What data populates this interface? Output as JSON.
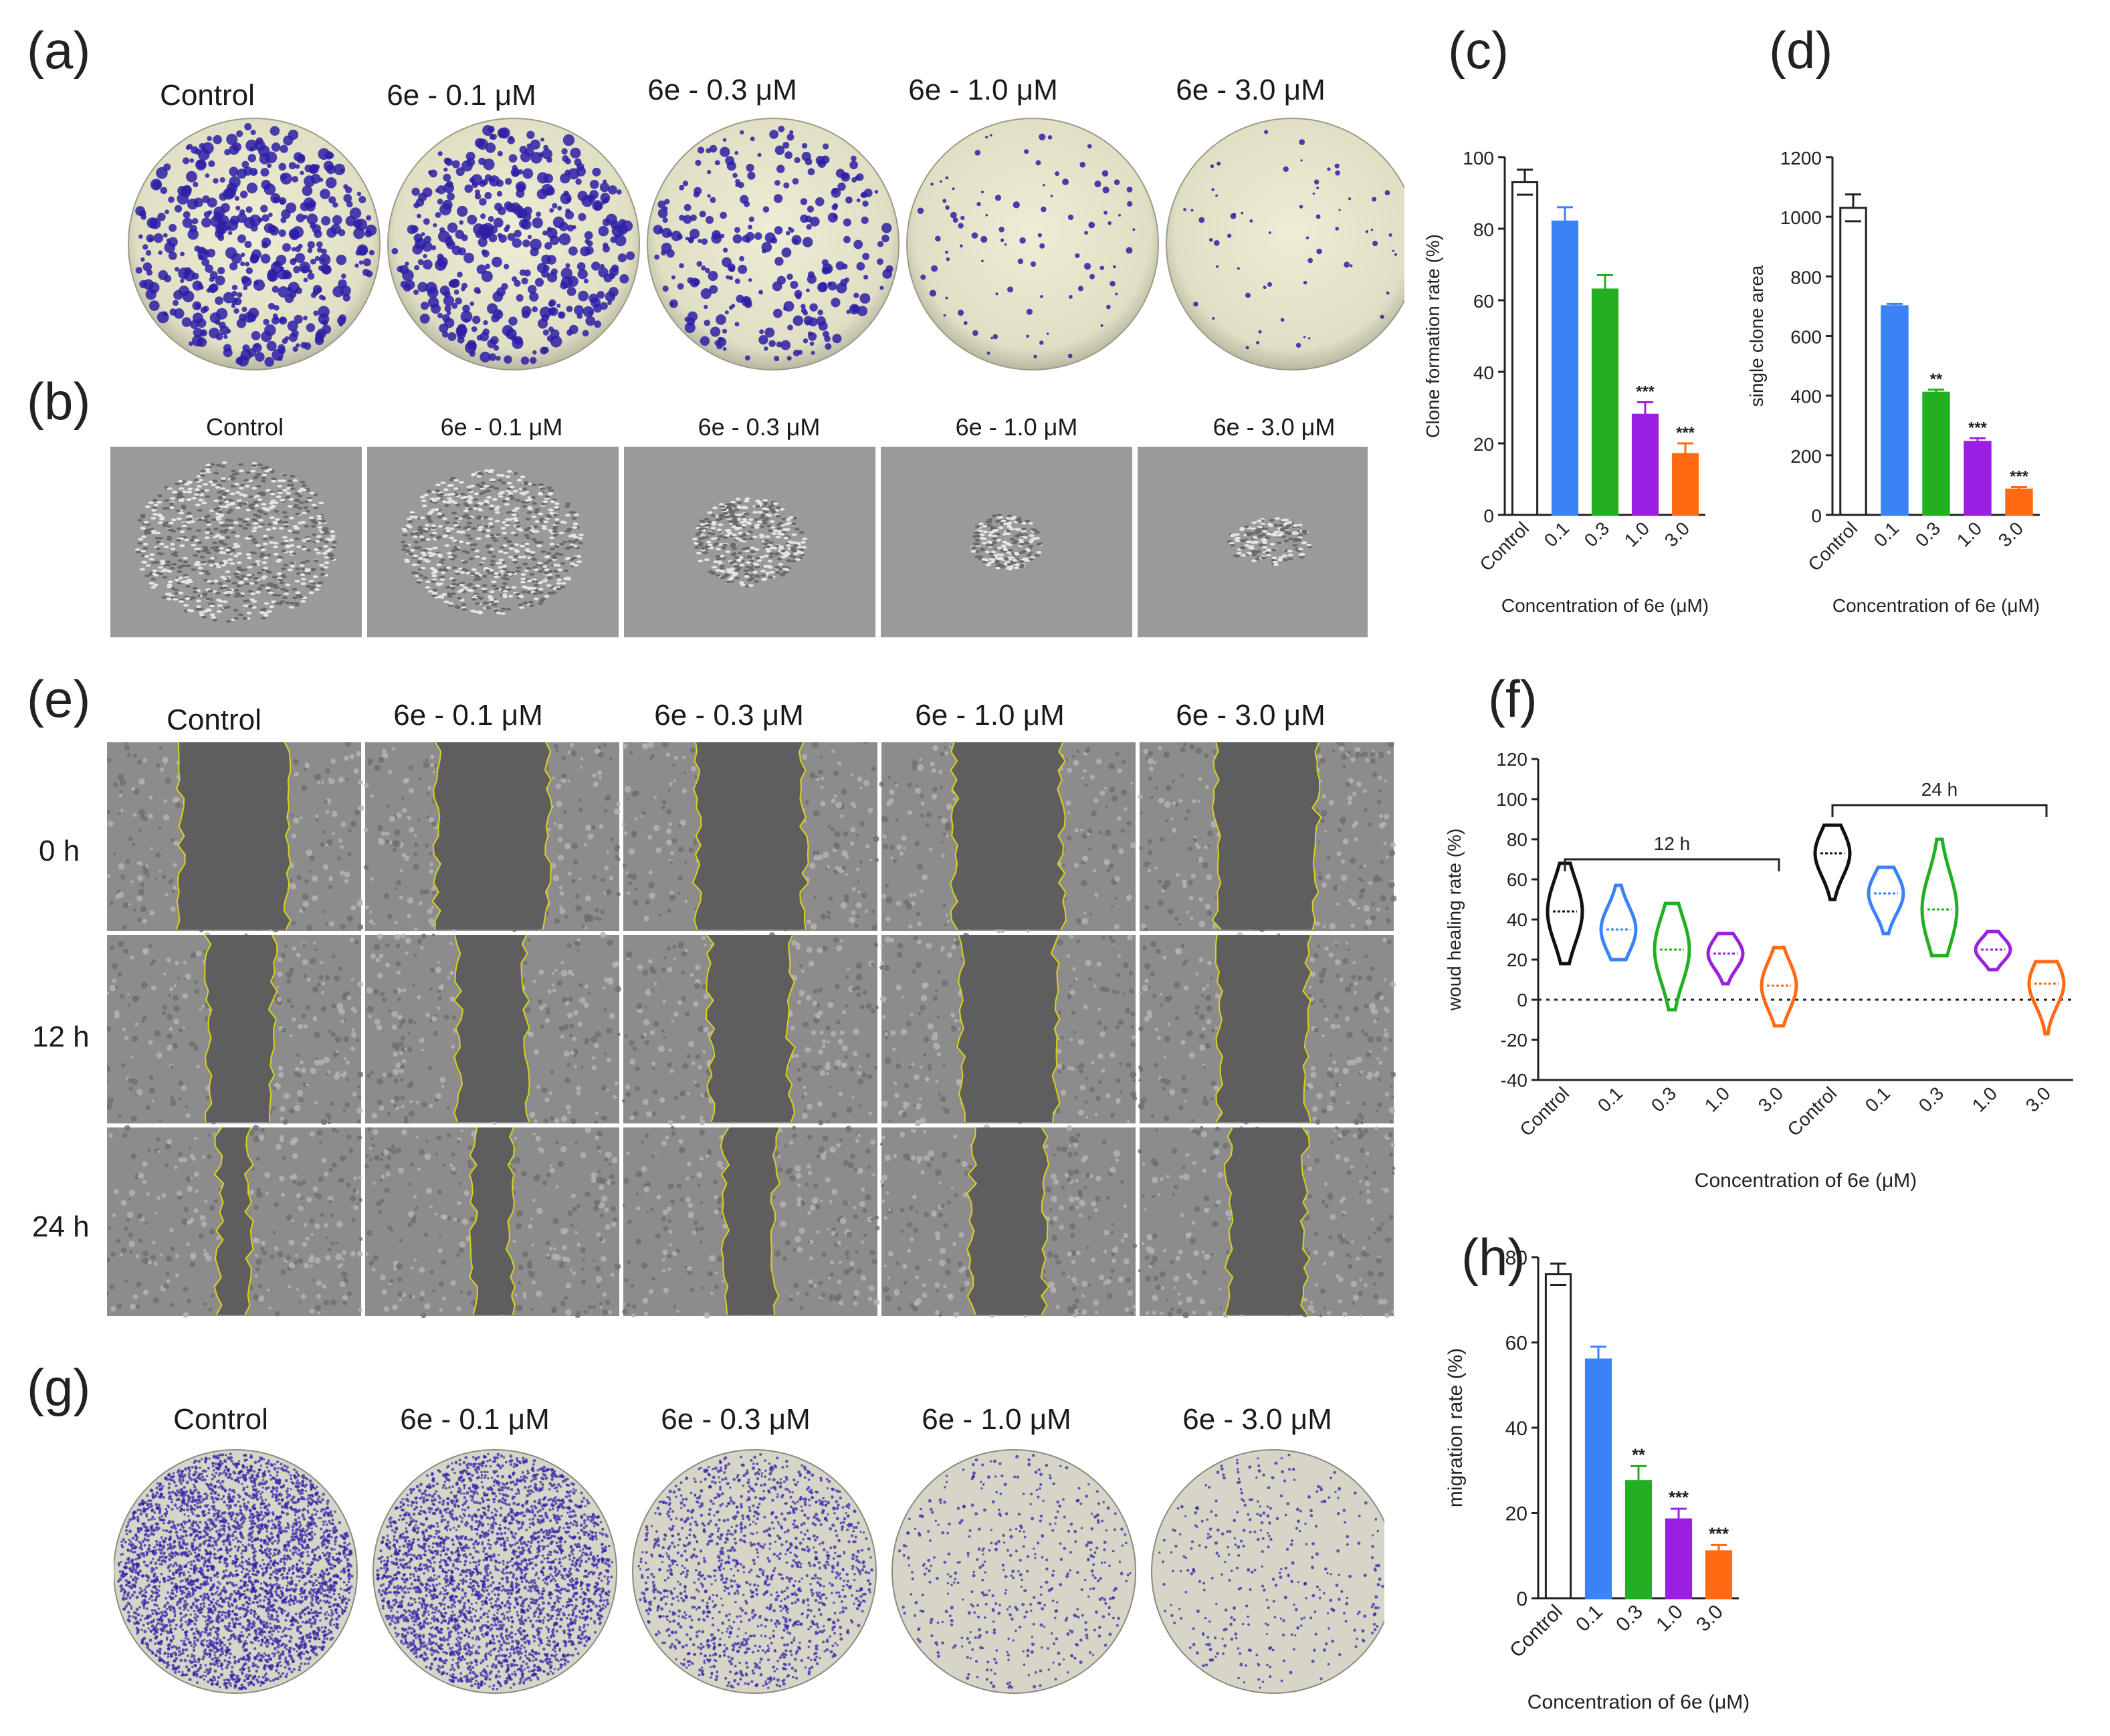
{
  "panels": {
    "a": "(a)",
    "b": "(b)",
    "c": "(c)",
    "d": "(d)",
    "e": "(e)",
    "f": "(f)",
    "g": "(g)",
    "h": "(h)"
  },
  "conditions": [
    "Control",
    "6e - 0.1 μM",
    "6e - 0.3 μM",
    "6e - 1.0 μM",
    "6e - 3.0 μM"
  ],
  "time_points": [
    "0 h",
    "12 h",
    "24 h"
  ],
  "colors": {
    "control": "#ffffff",
    "c01": "#3b82f6",
    "c03": "#22b022",
    "c10": "#9b1fe0",
    "c30": "#ff6a13",
    "stain": "#2d1fa6",
    "dish": "#e8e7cc",
    "wound_edge": "#d8d41a"
  },
  "chart_data": [
    {
      "id": "c",
      "type": "bar",
      "categories": [
        "Control",
        "0.1",
        "0.3",
        "1.0",
        "3.0"
      ],
      "values": [
        93,
        82,
        63,
        28,
        17
      ],
      "errors": [
        3.5,
        4,
        4,
        3.5,
        3
      ],
      "significance": [
        "",
        "",
        "",
        "***",
        "***"
      ],
      "xlabel": "Concentration of 6e (μM)",
      "ylabel": "Clone formation rate (%)",
      "ylim": [
        0,
        100
      ],
      "yticks": [
        0,
        20,
        40,
        60,
        80,
        100
      ]
    },
    {
      "id": "d",
      "type": "bar",
      "categories": [
        "Control",
        "0.1",
        "0.3",
        "1.0",
        "3.0"
      ],
      "values": [
        1030,
        700,
        410,
        245,
        85
      ],
      "errors": [
        45,
        8,
        10,
        12,
        8
      ],
      "significance": [
        "",
        "",
        "**",
        "***",
        "***"
      ],
      "xlabel": "Concentration of 6e (μM)",
      "ylabel": "single clone area",
      "ylim": [
        0,
        1200
      ],
      "yticks": [
        0,
        200,
        400,
        600,
        800,
        1000,
        1200
      ]
    },
    {
      "id": "f",
      "type": "violin",
      "categories": [
        "Control",
        "0.1",
        "0.3",
        "1.0",
        "3.0",
        "Control",
        "0.1",
        "0.3",
        "1.0",
        "3.0"
      ],
      "groups": [
        {
          "name": "12 h",
          "range": [
            0,
            4
          ]
        },
        {
          "name": "24 h",
          "range": [
            5,
            9
          ]
        }
      ],
      "medians": [
        44,
        35,
        25,
        23,
        7,
        73,
        53,
        45,
        25,
        8
      ],
      "mins": [
        18,
        20,
        -5,
        8,
        -13,
        50,
        33,
        22,
        15,
        -17
      ],
      "maxs": [
        68,
        57,
        48,
        33,
        26,
        87,
        66,
        80,
        34,
        19
      ],
      "xlabel": "Concentration of 6e (μM)",
      "ylabel": "woud healing rate (%)",
      "ylim": [
        -40,
        120
      ],
      "yticks": [
        -40,
        -20,
        0,
        20,
        40,
        60,
        80,
        100,
        120
      ]
    },
    {
      "id": "h",
      "type": "bar",
      "categories": [
        "Control",
        "0.1",
        "0.3",
        "1.0",
        "3.0"
      ],
      "values": [
        76,
        56,
        27.5,
        18.5,
        11
      ],
      "errors": [
        2.5,
        3,
        3.5,
        2.5,
        1.5
      ],
      "significance": [
        "",
        "",
        "**",
        "***",
        "***"
      ],
      "xlabel": "Concentration of 6e (μM)",
      "ylabel": "migration rate  (%)",
      "ylim": [
        0,
        80
      ],
      "yticks": [
        0,
        20,
        40,
        60,
        80
      ]
    }
  ]
}
